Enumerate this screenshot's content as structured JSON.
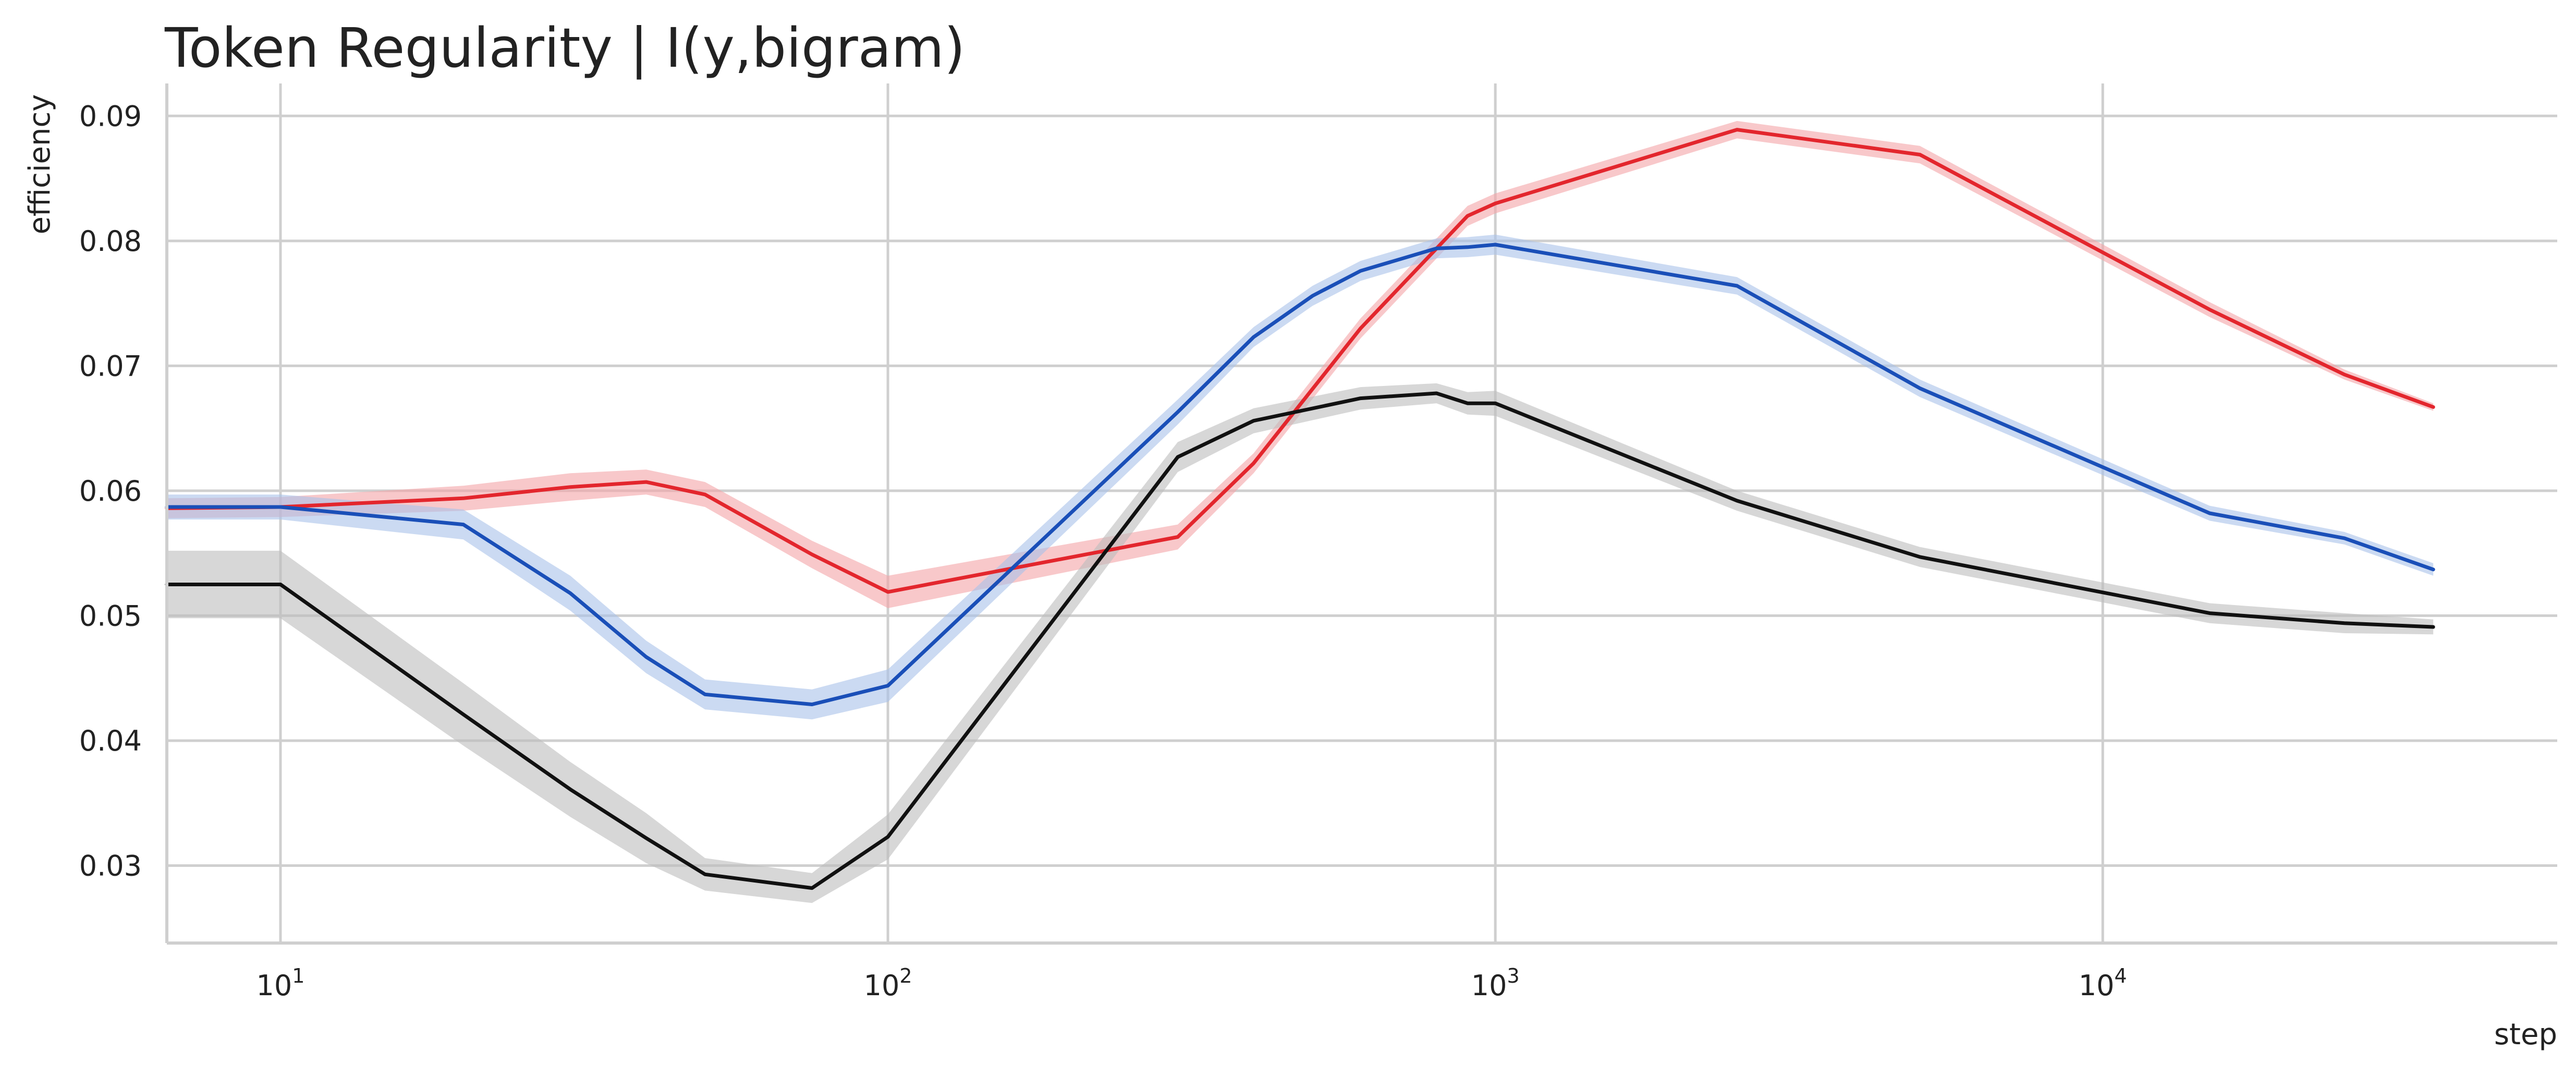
{
  "chart_data": {
    "type": "line",
    "title": "Token Regularity | I(y,bigram)",
    "xlabel": "step",
    "ylabel": "efficiency",
    "x_scale": "log",
    "xlim": [
      6.5,
      56000
    ],
    "ylim": [
      0.0238,
      0.0926
    ],
    "x_ticks": [
      {
        "value": 10,
        "base": "10",
        "exp": "1"
      },
      {
        "value": 100,
        "base": "10",
        "exp": "2"
      },
      {
        "value": 1000,
        "base": "10",
        "exp": "3"
      },
      {
        "value": 10000,
        "base": "10",
        "exp": "4"
      }
    ],
    "y_ticks": [
      {
        "value": 0.03,
        "label": "0.03"
      },
      {
        "value": 0.04,
        "label": "0.04"
      },
      {
        "value": 0.05,
        "label": "0.05"
      },
      {
        "value": 0.06,
        "label": "0.06"
      },
      {
        "value": 0.07,
        "label": "0.07"
      },
      {
        "value": 0.08,
        "label": "0.08"
      },
      {
        "value": 0.09,
        "label": "0.09"
      }
    ],
    "grid": true,
    "series": [
      {
        "color": "#e3262d",
        "band_color": "#f4a3a6",
        "x": [
          6.5,
          10,
          20,
          30,
          40,
          50,
          75,
          100,
          300,
          400,
          600,
          900,
          1000,
          2500,
          5000,
          15000,
          25000,
          35000
        ],
        "y": [
          0.0586,
          0.0587,
          0.0594,
          0.0603,
          0.0607,
          0.0597,
          0.0549,
          0.0519,
          0.0563,
          0.0622,
          0.073,
          0.082,
          0.083,
          0.0889,
          0.0869,
          0.0745,
          0.0693,
          0.0667
        ],
        "band": [
          0.0008,
          0.0008,
          0.001,
          0.0011,
          0.001,
          0.001,
          0.0011,
          0.0013,
          0.001,
          0.0008,
          0.0008,
          0.0008,
          0.0008,
          0.0007,
          0.0007,
          0.0006,
          0.0004,
          0.0003
        ]
      },
      {
        "color": "#1a4fb8",
        "band_color": "#a9c1ea",
        "x": [
          6.5,
          10,
          20,
          30,
          40,
          50,
          75,
          100,
          300,
          400,
          500,
          600,
          800,
          900,
          1000,
          2500,
          5000,
          15000,
          25000,
          35000
        ],
        "y": [
          0.0587,
          0.0587,
          0.0573,
          0.0518,
          0.0467,
          0.0437,
          0.0429,
          0.0444,
          0.0663,
          0.0723,
          0.0756,
          0.0776,
          0.0794,
          0.0795,
          0.0797,
          0.0764,
          0.0682,
          0.0582,
          0.0562,
          0.0537
        ],
        "band": [
          0.001,
          0.001,
          0.0012,
          0.0014,
          0.0013,
          0.0012,
          0.0012,
          0.0013,
          0.001,
          0.0008,
          0.0008,
          0.0008,
          0.0008,
          0.0008,
          0.0008,
          0.0007,
          0.0007,
          0.0006,
          0.0005,
          0.0005
        ]
      },
      {
        "color": "#111111",
        "band_color": "#bdbdbd",
        "x": [
          6.5,
          10,
          20,
          30,
          40,
          50,
          75,
          100,
          300,
          400,
          600,
          800,
          900,
          1000,
          2500,
          5000,
          15000,
          25000,
          35000
        ],
        "y": [
          0.0525,
          0.0525,
          0.0421,
          0.0361,
          0.0322,
          0.0293,
          0.0282,
          0.0323,
          0.0627,
          0.0656,
          0.0674,
          0.0678,
          0.067,
          0.067,
          0.0592,
          0.0547,
          0.0502,
          0.0494,
          0.0491
        ],
        "band": [
          0.0027,
          0.0027,
          0.0025,
          0.0022,
          0.002,
          0.0013,
          0.0012,
          0.0018,
          0.0012,
          0.001,
          0.0009,
          0.0008,
          0.0009,
          0.001,
          0.0008,
          0.0008,
          0.0008,
          0.0008,
          0.0006
        ]
      }
    ]
  }
}
